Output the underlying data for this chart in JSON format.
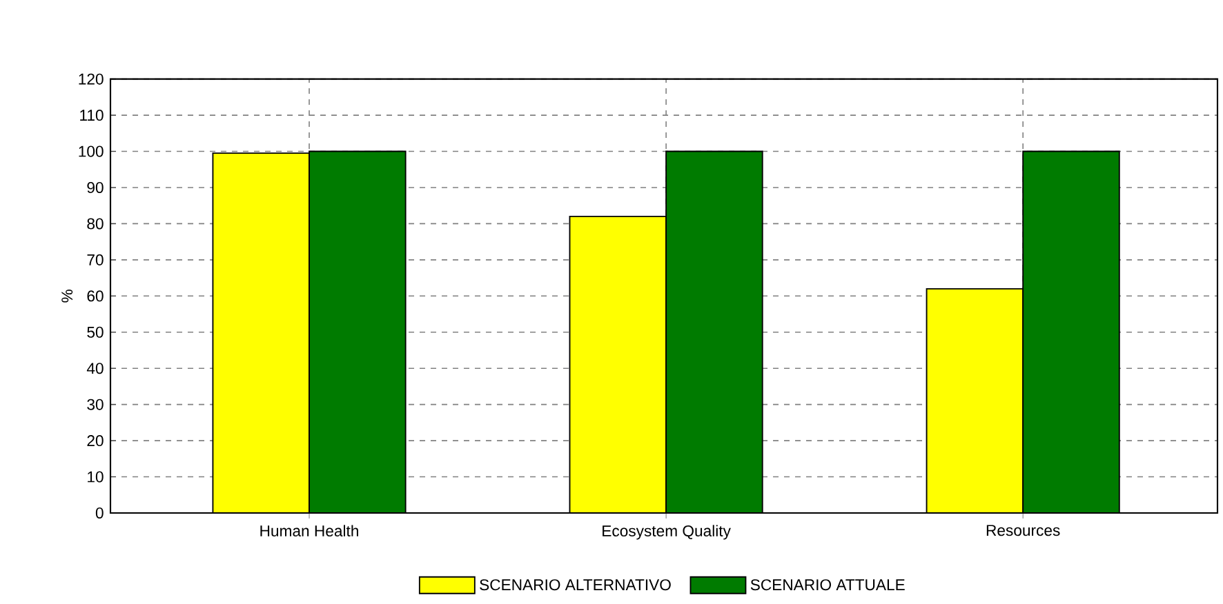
{
  "chart_data": {
    "type": "bar",
    "ylabel": "%",
    "categories": [
      "Human Health",
      "Ecosystem Quality",
      "Resources"
    ],
    "series": [
      {
        "name": "SCENARIO ALTERNATIVO",
        "color": "#ffff00",
        "values": [
          99.5,
          82,
          62
        ]
      },
      {
        "name": "SCENARIO ATTUALE",
        "color": "#007b00",
        "values": [
          100,
          100,
          100
        ]
      }
    ],
    "ylim": [
      0,
      120
    ],
    "yticks": [
      0,
      10,
      20,
      30,
      40,
      50,
      60,
      70,
      80,
      90,
      100,
      110,
      120
    ],
    "grid": true,
    "legend": "bottom"
  }
}
